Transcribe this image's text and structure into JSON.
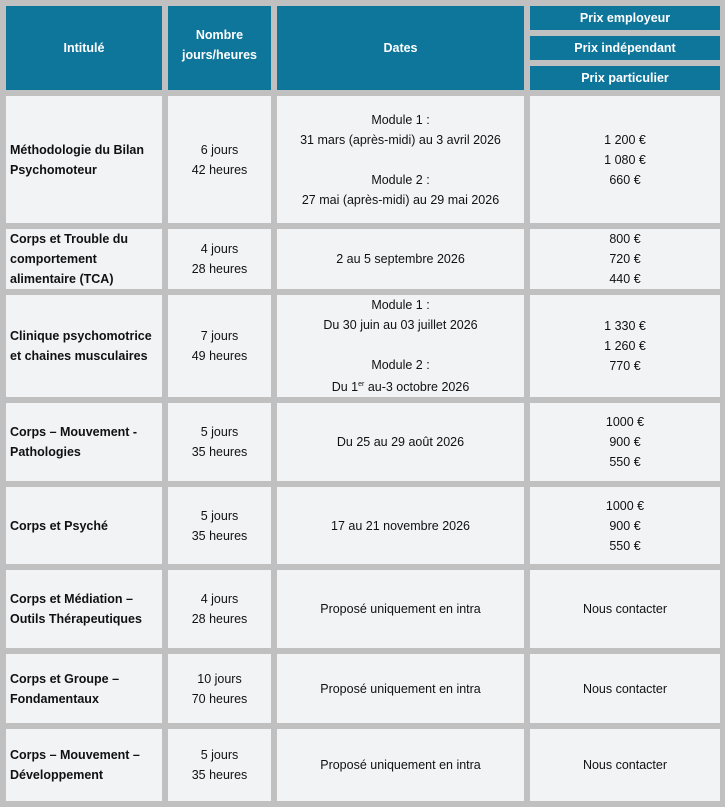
{
  "header": {
    "title": "Intitulé",
    "duration": [
      "Nombre",
      "jours/heures"
    ],
    "dates": "Dates",
    "prices": [
      "Prix employeur",
      "Prix indépendant",
      "Prix particulier"
    ]
  },
  "colors": {
    "header_bg": "#0e759b",
    "cell_bg": "#f2f3f5",
    "grid": "#c0c0c0"
  },
  "rows": [
    {
      "title": [
        "Méthodologie du Bilan",
        "Psychomoteur"
      ],
      "duration": [
        "6 jours",
        "42 heures"
      ],
      "dates": [
        "Module 1 :",
        "31 mars (après-midi) au 3 avril 2026",
        "",
        "Module 2 :",
        "27 mai (après-midi) au 29 mai 2026"
      ],
      "prices": [
        "1 200 €",
        "1 080 €",
        "660 €"
      ]
    },
    {
      "title": [
        "Corps et Trouble du",
        "comportement",
        "alimentaire (TCA)"
      ],
      "duration": [
        "4 jours",
        "28 heures"
      ],
      "dates": [
        "2 au 5 septembre 2026"
      ],
      "prices": [
        "800 €",
        "720 €",
        "440 €"
      ]
    },
    {
      "title": [
        "Clinique psychomotrice",
        "et chaines musculaires"
      ],
      "duration": [
        "7 jours",
        "49 heures"
      ],
      "dates": [
        "Module 1 :",
        "Du 30 juin au 03 juillet 2026",
        "",
        "Module 2 :"
      ],
      "dates_last": {
        "pre": "Du 1",
        "sup": "er",
        "post": " au-3 octobre 2026"
      },
      "prices": [
        "1 330 €",
        "1 260 €",
        "770 €"
      ]
    },
    {
      "title": [
        "Corps – Mouvement -",
        "Pathologies"
      ],
      "duration": [
        "5 jours",
        "35 heures"
      ],
      "dates": [
        "Du 25 au 29 août 2026"
      ],
      "prices": [
        "1000 €",
        "900 €",
        "550 €"
      ]
    },
    {
      "title": [
        "Corps et Psyché"
      ],
      "duration": [
        "5 jours",
        "35 heures"
      ],
      "dates": [
        "17 au 21 novembre 2026"
      ],
      "prices": [
        "1000 €",
        "900 €",
        "550 €"
      ]
    },
    {
      "title": [
        "Corps et Médiation –",
        "Outils Thérapeutiques"
      ],
      "duration": [
        "4 jours",
        "28 heures"
      ],
      "dates": [
        "Proposé uniquement en intra"
      ],
      "prices": [
        "Nous contacter"
      ]
    },
    {
      "title": [
        "Corps et Groupe –",
        "Fondamentaux"
      ],
      "duration": [
        "10 jours",
        "70 heures"
      ],
      "dates": [
        "Proposé uniquement en intra"
      ],
      "prices": [
        "Nous contacter"
      ]
    },
    {
      "title": [
        "Corps – Mouvement –",
        "Développement"
      ],
      "duration": [
        "5 jours",
        "35 heures"
      ],
      "dates": [
        "Proposé uniquement en intra"
      ],
      "prices": [
        "Nous contacter"
      ]
    }
  ]
}
